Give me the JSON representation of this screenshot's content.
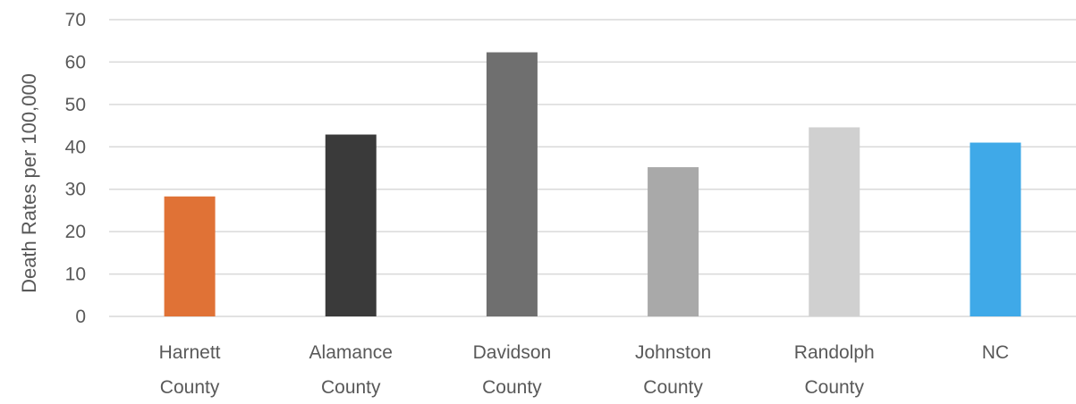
{
  "chart_data": {
    "type": "bar",
    "title": "",
    "xlabel": "",
    "ylabel": "Death Rates per 100,000",
    "ylim": [
      0,
      70
    ],
    "yticks": [
      0,
      10,
      20,
      30,
      40,
      50,
      60,
      70
    ],
    "grid": true,
    "legend": "none",
    "categories": [
      [
        "Harnett",
        "County"
      ],
      [
        "Alamance",
        "County"
      ],
      [
        "Davidson",
        "County"
      ],
      [
        "Johnston",
        "County"
      ],
      [
        "Randolph",
        "County"
      ],
      [
        "NC"
      ]
    ],
    "values": [
      28.3,
      42.9,
      62.3,
      35.2,
      44.6,
      41.0
    ],
    "colors": [
      "#e07236",
      "#3a3a3a",
      "#6f6f6f",
      "#a9a9a9",
      "#d0d0d0",
      "#3fa9e8"
    ]
  }
}
